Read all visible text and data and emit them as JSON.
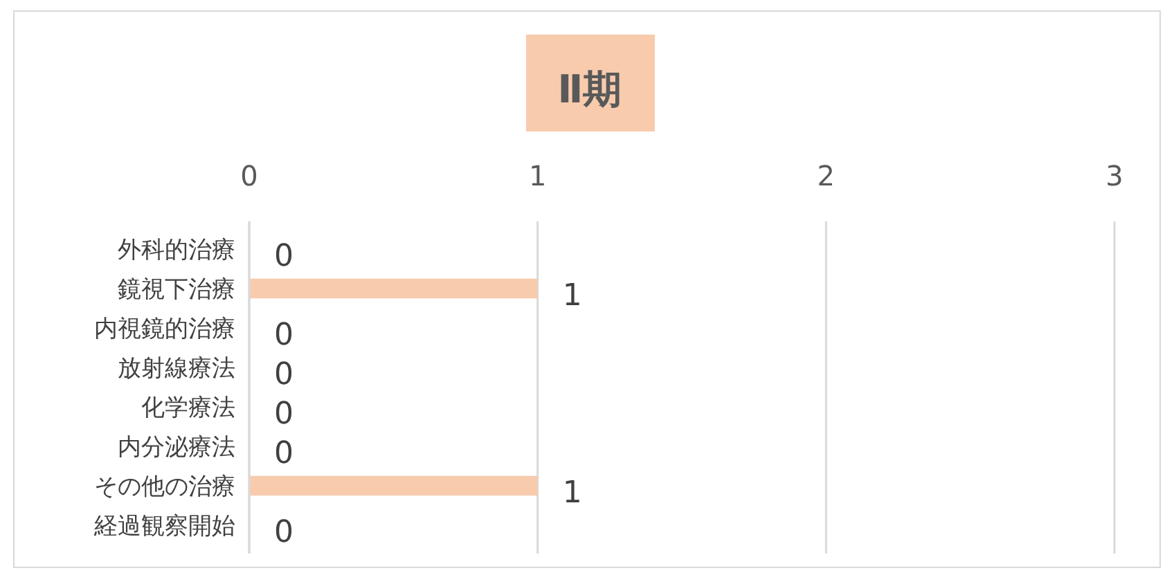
{
  "chart_data": {
    "type": "bar",
    "orientation": "horizontal",
    "title": "Ⅱ期",
    "categories": [
      "外科的治療",
      "鏡視下治療",
      "内視鏡的治療",
      "放射線療法",
      "化学療法",
      "内分泌療法",
      "その他の治療",
      "経過観察開始"
    ],
    "values": [
      0,
      1,
      0,
      0,
      0,
      0,
      1,
      0
    ],
    "color": "#f8cbad",
    "xlim": [
      0,
      3
    ],
    "xticks": [
      0,
      1,
      2,
      3
    ],
    "grid": "x",
    "data_labels": true
  }
}
